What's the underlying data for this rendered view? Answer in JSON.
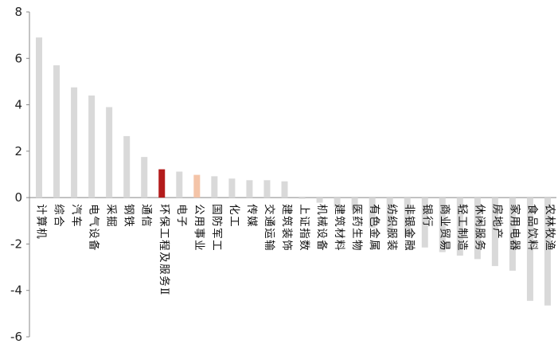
{
  "chart_data": {
    "type": "bar",
    "title": "",
    "xlabel": "",
    "ylabel": "",
    "ylim": [
      -6,
      8
    ],
    "yticks": [
      -6,
      -4,
      -2,
      0,
      2,
      4,
      6,
      8
    ],
    "grid": false,
    "legend": "none",
    "categories": [
      "计算机",
      "综合",
      "汽车",
      "电气设备",
      "采掘",
      "钢铁",
      "通信",
      "环保工程及服务Ⅱ",
      "电子",
      "公用事业",
      "国防军工",
      "化工",
      "传媒",
      "交通运输",
      "建筑装饰",
      "上证指数",
      "机械设备",
      "建筑材料",
      "医药生物",
      "有色金属",
      "纺织服装",
      "非银金融",
      "银行",
      "商业贸易",
      "轻工制造",
      "休闲服务",
      "房地产",
      "家用电器",
      "食品饮料",
      "农林牧渔"
    ],
    "values": [
      6.9,
      5.7,
      4.75,
      4.4,
      3.9,
      2.65,
      1.75,
      1.22,
      1.12,
      0.98,
      0.92,
      0.82,
      0.75,
      0.75,
      0.7,
      -0.05,
      -0.22,
      -0.4,
      -0.55,
      -1.3,
      -1.5,
      -1.7,
      -2.15,
      -2.35,
      -2.5,
      -2.65,
      -2.95,
      -3.15,
      -4.45,
      -4.65
    ],
    "highlight": {
      "环保工程及服务Ⅱ": "#b31b1b",
      "公用事业": "#f4c4a8"
    },
    "colors": {
      "default": "#d9d9d9"
    }
  }
}
